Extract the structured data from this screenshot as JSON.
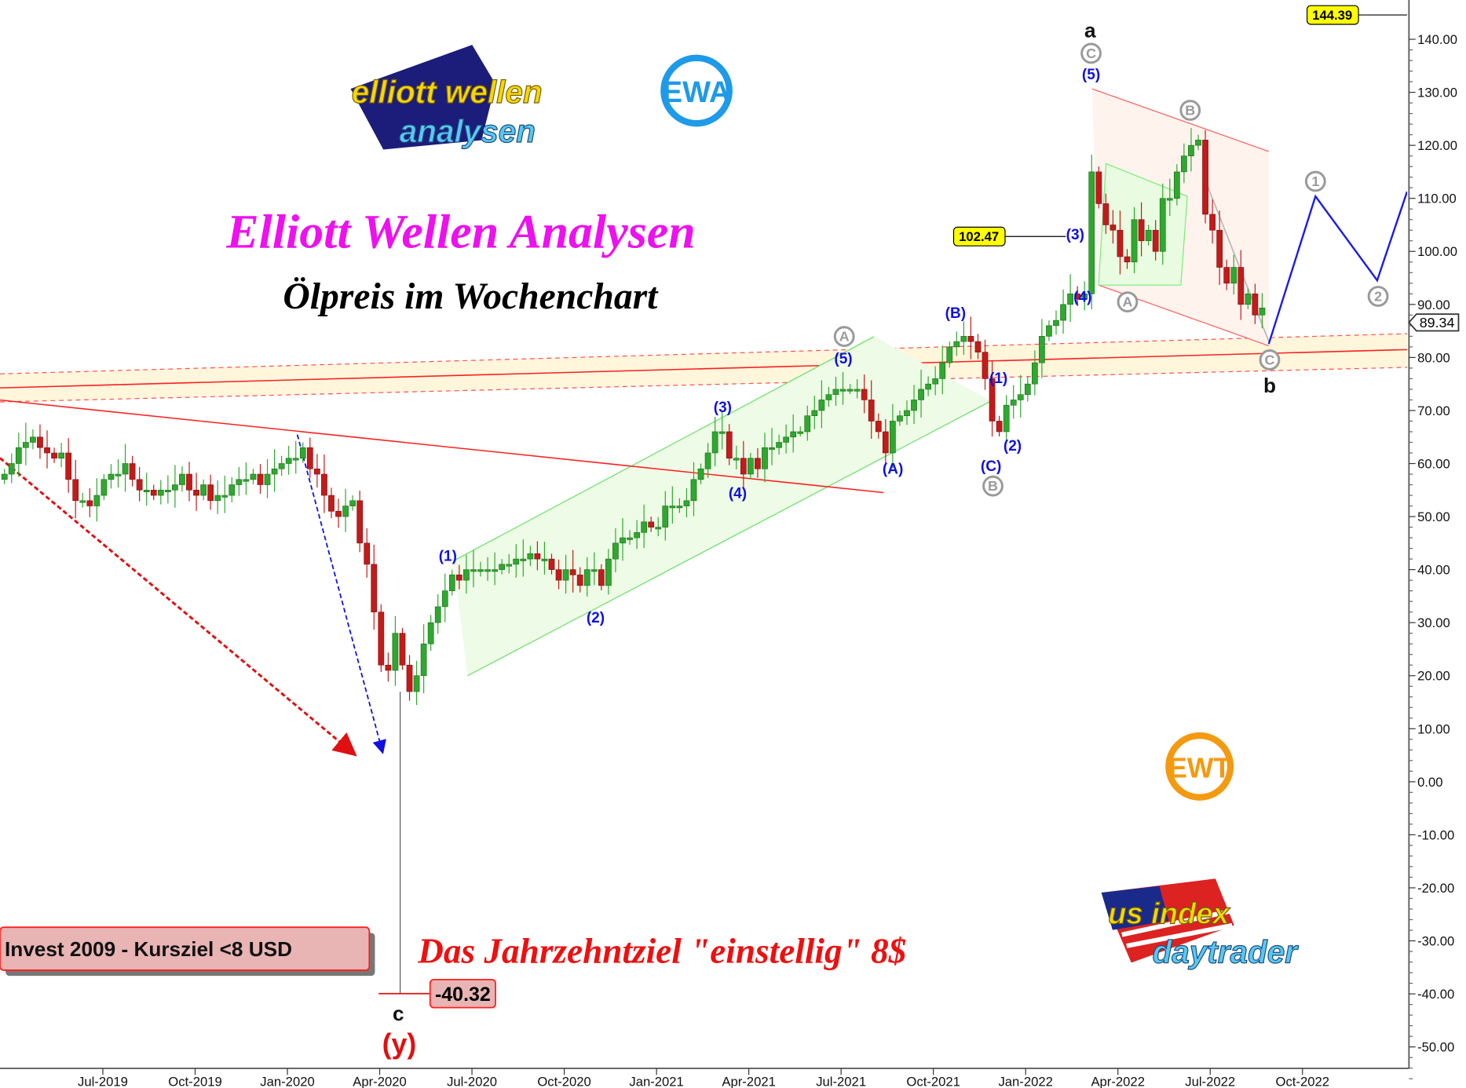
{
  "chart_data": {
    "type": "candlestick",
    "title": "Elliott Wellen Analysen",
    "subtitle": "Ölpreis im Wochenchart",
    "interval": "weekly",
    "ylim": [
      -55,
      148
    ],
    "y_ticks": [
      "140.00",
      "130.00",
      "120.00",
      "110.00",
      "100.00",
      "90.00",
      "80.00",
      "70.00",
      "60.00",
      "50.00",
      "40.00",
      "30.00",
      "20.00",
      "10.00",
      "0.00",
      "-10.00",
      "-20.00",
      "-30.00",
      "-40.00",
      "-50.00"
    ],
    "x_ticks": [
      "Jul-2019",
      "Oct-2019",
      "Jan-2020",
      "Apr-2020",
      "Jul-2020",
      "Oct-2020",
      "Jan-2021",
      "Apr-2021",
      "Jul-2021",
      "Oct-2021",
      "Jan-2022",
      "Apr-2022",
      "Jul-2022",
      "Oct-2022"
    ],
    "weekly_closes": [
      58,
      60,
      63,
      64,
      65,
      63,
      62,
      61,
      62,
      57,
      53,
      53,
      52,
      54,
      57,
      58,
      58,
      60,
      57,
      55,
      55,
      54,
      55,
      55,
      56,
      58,
      55,
      54,
      56,
      53,
      54,
      54,
      56,
      57,
      57,
      58,
      56,
      58,
      59,
      60,
      61,
      61,
      63,
      59,
      58,
      54,
      51,
      50,
      52,
      53,
      45,
      41,
      32,
      22,
      21,
      28,
      22,
      17,
      20,
      26,
      30,
      33,
      36,
      39,
      38,
      40,
      40,
      40,
      40,
      40,
      41,
      41,
      42,
      42,
      43,
      42,
      42,
      40,
      38,
      40,
      39,
      37,
      40,
      40,
      37,
      42,
      45,
      46,
      46,
      47,
      49,
      48,
      48,
      52,
      52,
      52,
      53,
      57,
      59,
      62,
      66,
      66,
      61,
      61,
      58,
      61,
      59,
      63,
      63,
      64,
      65,
      66,
      66,
      69,
      70,
      72,
      73,
      74,
      74,
      74,
      74,
      72,
      68,
      66,
      62,
      68,
      69,
      70,
      72,
      74,
      75,
      76,
      79,
      82,
      83,
      84,
      83,
      81,
      76,
      68,
      66,
      71,
      72,
      73,
      75,
      79,
      84,
      86,
      87,
      90,
      92,
      91,
      92,
      115,
      109,
      105,
      104,
      99,
      98,
      106,
      102,
      104,
      100,
      110,
      110,
      115,
      118,
      120,
      121,
      107,
      104,
      97,
      94,
      97,
      90,
      92,
      88,
      89.34
    ],
    "extreme_low": -40.32,
    "high_marker": 144.39,
    "level_marker": 102.47,
    "last_price": 89.34,
    "colors": {
      "up": "#2ea82e",
      "down": "#c41a1a",
      "projection": "#1a1ae6",
      "channel": "#7be07b",
      "resistance": "#ff2020"
    },
    "labels": {
      "high_marker": "144.39",
      "level_marker": "102.47",
      "last_price": "89.34",
      "extreme_low": "-40.32"
    },
    "waves": {
      "a": "a",
      "b": "b",
      "c": "c",
      "y": "(y)",
      "p1": "(1)",
      "p2": "(2)",
      "p3": "(3)",
      "p4": "(4)",
      "p5": "(5)",
      "pA": "(A)",
      "pB": "(B)",
      "pC": "(C)",
      "cA": "A",
      "cB": "B",
      "cC": "C",
      "c1": "1",
      "c2": "2"
    }
  },
  "annotations": {
    "target_text": "Das Jahrzehntziel \"einstellig\" 8$",
    "invest_box": "Invest 2009 - Kursziel <8 USD"
  },
  "logos": {
    "ewa": "EWA",
    "ewt": "EWT",
    "elliott": "elliott wellen analysen",
    "usindex": "us index daytrader"
  }
}
